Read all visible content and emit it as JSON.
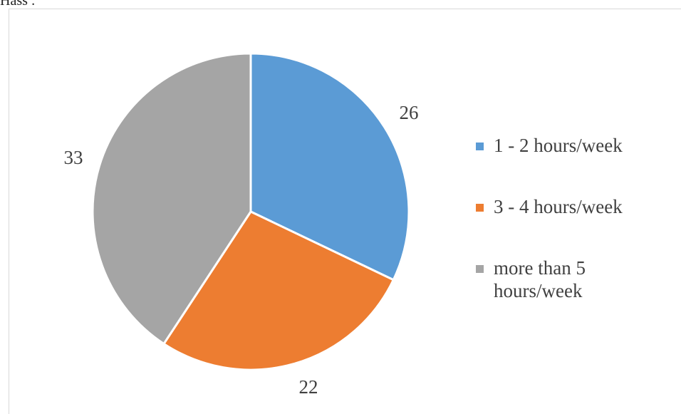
{
  "top_fragment": "Hass :",
  "chart_data": {
    "type": "pie",
    "categories": [
      "1 - 2 hours/week",
      "3 - 4 hours/week",
      "more than 5 hours/week"
    ],
    "values": [
      26,
      22,
      33
    ],
    "data_labels": [
      "26",
      "22",
      "33"
    ],
    "colors": [
      "#5B9BD5",
      "#ED7D31",
      "#A5A5A5"
    ],
    "legend_position": "right",
    "start_angle": "12 o'clock, clockwise"
  },
  "legend": {
    "items": [
      {
        "label": "1 - 2 hours/week",
        "color": "#5B9BD5"
      },
      {
        "label": "3 - 4 hours/week",
        "color": "#ED7D31"
      },
      {
        "label": "more than 5 hours/week",
        "color": "#A5A5A5"
      }
    ]
  }
}
